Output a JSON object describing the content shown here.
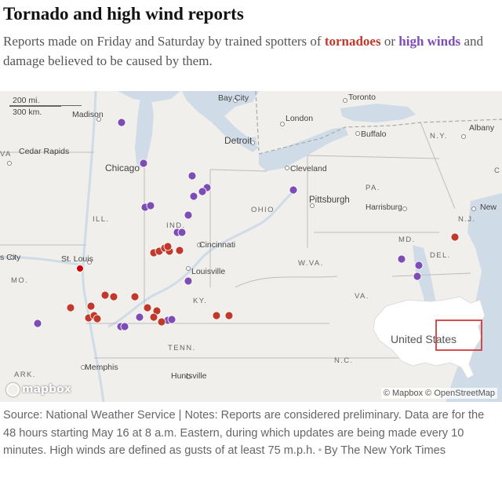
{
  "header": {
    "title": "Tornado and high wind reports",
    "subtitle_before": "Reports made on Friday and Saturday by trained spotters of ",
    "subtitle_tornadoes": "tornadoes",
    "subtitle_or": " or ",
    "subtitle_winds": "high winds",
    "subtitle_after": " and damage believed to be caused by them."
  },
  "map": {
    "scale_top": "200 mi.",
    "scale_bottom": "300 km.",
    "cities": {
      "bay_city": "Bay City",
      "toronto": "Toronto",
      "madison": "Madison",
      "london": "London",
      "buffalo": "Buffalo",
      "albany": "Albany",
      "detroit": "Detroit",
      "cedar_rapids": "Cedar Rapids",
      "chicago": "Chicago",
      "cleveland": "Cleveland",
      "pittsburgh": "Pittsburgh",
      "harrisburg": "Harrisburg",
      "new_york": "New",
      "cincinnati": "Cincinnati",
      "st_louis": "St. Louis",
      "louisville": "Louisville",
      "kansas_city": "s City",
      "memphis": "Memphis",
      "huntsville": "Huntsville"
    },
    "states": {
      "ny": "N.Y.",
      "ia": "VA",
      "ct": "C",
      "pa": "PA.",
      "ill": "ILL.",
      "ohio": "OHIO",
      "ind": "IND.",
      "nj": "N.J.",
      "md": "MD.",
      "de": "DEL.",
      "mo": "MO.",
      "wva": "W.VA.",
      "va": "VA.",
      "ky": "KY.",
      "tenn": "TENN.",
      "nc": "N.C.",
      "ark": "ARK."
    },
    "inset_label": "United States",
    "mapbox_logo": "mapbox",
    "attribution": "© Mapbox © OpenStreetMap",
    "colors": {
      "tornado": "#c0392b",
      "high_wind": "#7d4db5",
      "st_louis_dot": "#cc0000",
      "water": "#cfdce7",
      "land": "#f0efec"
    }
  },
  "footer": {
    "source": "Source: National Weather Service | Notes: Reports are considered preliminary. Data are for the 48 hours starting May 16 at 8 a.m. Eastern, during which updates are being made every 10 minutes. High winds are defined as gusts of at least 75 m.p.h.",
    "separator": "•",
    "credit": "By The New York Times"
  }
}
